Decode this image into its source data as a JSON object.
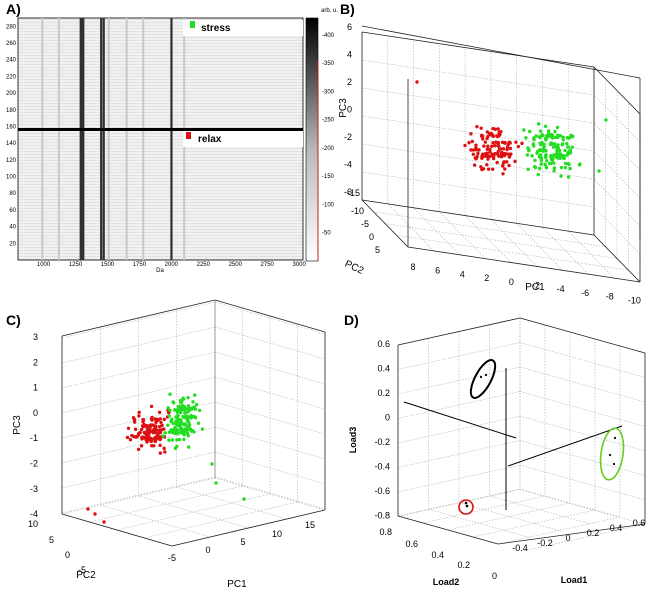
{
  "panels": {
    "a": {
      "letter": "A)"
    },
    "b": {
      "letter": "B)"
    },
    "c": {
      "letter": "C)"
    },
    "d": {
      "letter": "D)"
    }
  },
  "colors": {
    "stress": "#22dd22",
    "relax": "#dd1111",
    "black": "#000000",
    "grid": "#b0b0b0",
    "green_ellipse": "#66cc22"
  },
  "chart_data": [
    {
      "id": "A",
      "type": "heatmap",
      "title": "",
      "xlabel": "Da",
      "ylabel": "",
      "x_ticks": [
        "1000",
        "1250",
        "1500",
        "1750",
        "2000",
        "2250",
        "2500",
        "2750",
        "3000"
      ],
      "y_ticks": [
        "20",
        "40",
        "60",
        "80",
        "100",
        "120",
        "140",
        "160",
        "180",
        "200",
        "220",
        "240",
        "260",
        "280"
      ],
      "colorbar_label": "arb. u.",
      "colorbar_ticks": [
        "50",
        "100",
        "150",
        "200",
        "250",
        "300",
        "350",
        "400"
      ],
      "legend": [
        {
          "label": "stress",
          "color": "#22dd22"
        },
        {
          "label": "relax",
          "color": "#dd1111"
        }
      ],
      "xlim": [
        800,
        3030
      ],
      "ylim": [
        0,
        290
      ],
      "group_boundary_y": 146,
      "dark_band_da": [
        1290,
        1300,
        1310,
        1450,
        1470,
        2000
      ],
      "faint_band_da": [
        990,
        1120,
        1510,
        1650,
        1780,
        2100
      ]
    },
    {
      "id": "B",
      "type": "scatter",
      "subtype": "3d",
      "xlabel": "PC1",
      "ylabel": "PC2",
      "zlabel": "PC3",
      "x_ticks": [
        "8",
        "6",
        "4",
        "2",
        "0",
        "-2",
        "-4",
        "-6",
        "-8",
        "-10"
      ],
      "y_ticks": [
        "-15",
        "-10",
        "-5",
        "0",
        "5"
      ],
      "z_ticks": [
        "6",
        "4",
        "2",
        "0",
        "-2",
        "-4",
        "-6"
      ],
      "series": [
        {
          "name": "relax",
          "color": "#dd1111"
        },
        {
          "name": "stress",
          "color": "#22dd22"
        }
      ]
    },
    {
      "id": "C",
      "type": "scatter",
      "subtype": "3d",
      "xlabel": "PC1",
      "ylabel": "PC2",
      "zlabel": "PC3",
      "x_ticks": [
        "-5",
        "0",
        "5",
        "10",
        "15"
      ],
      "y_ticks": [
        "10",
        "5",
        "0",
        "-5"
      ],
      "z_ticks": [
        "3",
        "2",
        "1",
        "0",
        "-1",
        "-2",
        "-3",
        "-4"
      ],
      "series": [
        {
          "name": "relax",
          "color": "#dd1111"
        },
        {
          "name": "stress",
          "color": "#22dd22"
        }
      ]
    },
    {
      "id": "D",
      "type": "scatter",
      "subtype": "3d-loadings",
      "xlabel": "Load1",
      "ylabel": "Load2",
      "zlabel": "Load3",
      "x_ticks": [
        "-0.4",
        "-0.2",
        "0",
        "0.2",
        "0.4",
        "0.6"
      ],
      "y_ticks": [
        "0.8",
        "0.6",
        "0.4",
        "0.2",
        "0"
      ],
      "z_ticks": [
        "0.6",
        "0.4",
        "0.2",
        "0",
        "-0.2",
        "-0.4",
        "-0.6",
        "-0.8"
      ],
      "ellipses": [
        {
          "color": "#000000"
        },
        {
          "color": "#dd1111"
        },
        {
          "color": "#66cc22"
        }
      ]
    }
  ]
}
